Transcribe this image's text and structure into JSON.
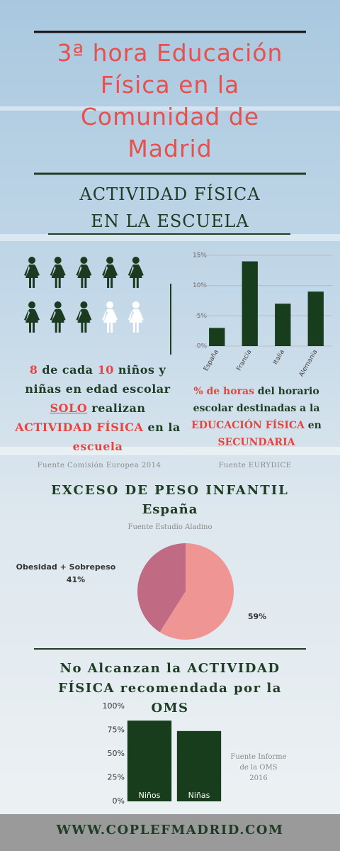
{
  "title": "3ª hora Educación Física en la Comunidad de Madrid",
  "section_heading": "ACTIVIDAD FÍSICA EN LA ESCUELA",
  "chart_data": [
    {
      "type": "pictograph",
      "filled": 8,
      "total": 10,
      "color": "#1b3a1f",
      "empty_color": "#ffffff",
      "caption": [
        {
          "text": "8",
          "color": "#e5443f"
        },
        {
          "text": " de cada ",
          "color": "#1f3d24"
        },
        {
          "text": "10",
          "color": "#e5443f"
        },
        {
          "text": " niños y niñas en edad escolar ",
          "color": "#1f3d24"
        },
        {
          "text": "SOLO",
          "color": "#e5443f",
          "underline": true
        },
        {
          "text": " realizan ",
          "color": "#1f3d24"
        },
        {
          "text": "ACTIVIDAD FÍSICA",
          "color": "#e5443f"
        },
        {
          "text": " en la ",
          "color": "#1f3d24"
        },
        {
          "text": "escuela",
          "color": "#e5443f"
        }
      ],
      "source": "Fuente Comisión Europea 2014"
    },
    {
      "type": "bar",
      "categories": [
        "España",
        "Francia",
        "Italia",
        "Alemania"
      ],
      "values": [
        3,
        14,
        7,
        9
      ],
      "color": "#173d1c",
      "ylim": [
        0,
        15
      ],
      "yticks": [
        {
          "value": 0,
          "label": "0%"
        },
        {
          "value": 5,
          "label": "5%"
        },
        {
          "value": 10,
          "label": "10%"
        },
        {
          "value": 15,
          "label": "15%"
        }
      ],
      "grid": true,
      "caption": [
        {
          "text": "% de horas",
          "color": "#e5443f"
        },
        {
          "text": " del horario escolar destinadas a la ",
          "color": "#1f3d24"
        },
        {
          "text": "EDUCACIÓN FÍSICA",
          "color": "#e5443f"
        },
        {
          "text": " en ",
          "color": "#1f3d24"
        },
        {
          "text": "SECUNDARIA",
          "color": "#e5443f"
        }
      ],
      "source": "Fuente EURYDICE"
    },
    {
      "type": "pie",
      "title": "EXCESO DE PESO INFANTIL",
      "subtitle": "España",
      "source": "Fuente Estudio Aladino",
      "categories": [
        "Obesidad + Sobrepeso",
        null
      ],
      "values": [
        41,
        59
      ],
      "value_labels": [
        "41%",
        "59%"
      ],
      "colors": [
        "#c06a84",
        "#ef9594"
      ]
    },
    {
      "type": "bar",
      "title": "No Alcanzan la ACTIVIDAD FÍSICA recomendada por la OMS",
      "categories": [
        "Niños",
        "Niñas"
      ],
      "values": [
        85,
        74
      ],
      "color": "#173d1c",
      "ylim": [
        0,
        100
      ],
      "yticks": [
        {
          "value": 0,
          "label": "0%"
        },
        {
          "value": 25,
          "label": "25%"
        },
        {
          "value": 50,
          "label": "50%"
        },
        {
          "value": 75,
          "label": "75%"
        },
        {
          "value": 100,
          "label": "100%"
        }
      ],
      "grid": false,
      "source": "Fuente Informe de la OMS 2016"
    }
  ],
  "footer": "WWW.COPLEFMADRID.COM"
}
